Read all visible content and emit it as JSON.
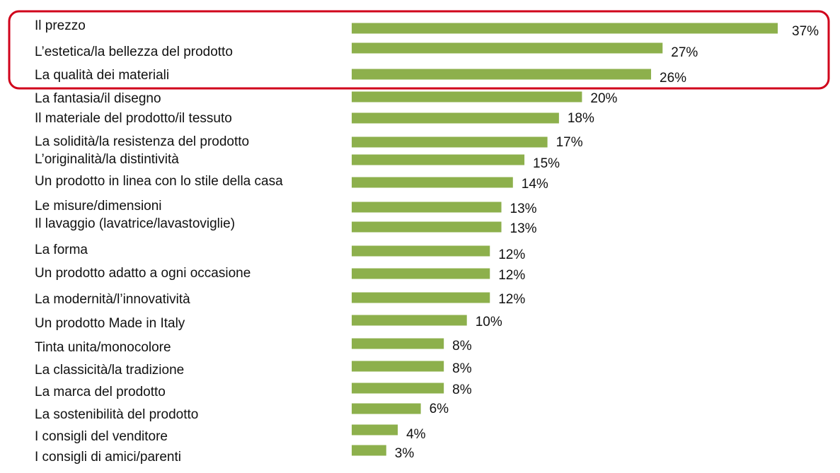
{
  "chart_data": {
    "type": "bar",
    "orientation": "horizontal",
    "categories": [
      "Il prezzo",
      "L’estetica/la bellezza del prodotto",
      "La qualità dei materiali",
      "La fantasia/il disegno",
      "Il materiale del prodotto/il tessuto",
      "La solidità/la resistenza del prodotto",
      "L’originalità/la distintività",
      "Un prodotto in linea con lo stile della casa",
      "Le misure/dimensioni",
      "Il lavaggio (lavatrice/lavastoviglie)",
      "La forma",
      "Un prodotto adatto a ogni occasione",
      "La modernità/l’innovatività",
      "Un prodotto Made in Italy",
      "Tinta unita/monocolore",
      "La classicità/la tradizione",
      "La marca del prodotto",
      "La sostenibilità del prodotto",
      "I consigli del venditore",
      "I consigli di amici/parenti"
    ],
    "values": [
      37,
      27,
      26,
      20,
      18,
      17,
      15,
      14,
      13,
      13,
      12,
      12,
      12,
      10,
      8,
      8,
      8,
      6,
      4,
      3
    ],
    "value_labels": [
      "37%",
      "27%",
      "26%",
      "20%",
      "18%",
      "17%",
      "15%",
      "14%",
      "13%",
      "13%",
      "12%",
      "12%",
      "12%",
      "10%",
      "8%",
      "8%",
      "8%",
      "6%",
      "4%",
      "3%"
    ],
    "unit": "%",
    "xlim": [
      0,
      37
    ],
    "highlighted_count": 3,
    "grid": false,
    "legend": "none"
  },
  "colors": {
    "bar": "#8db04c",
    "highlight_box": "#d0021b",
    "text": "#111111",
    "background": "#ffffff"
  }
}
